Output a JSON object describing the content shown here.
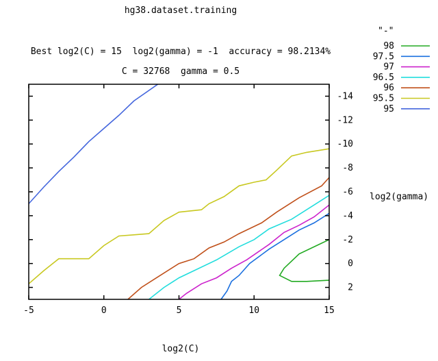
{
  "chart_data": {
    "type": "line",
    "title": "hg38.dataset.training",
    "subtitle1": "Best log2(C) = 15  log2(gamma) = -1  accuracy = 98.2134%",
    "subtitle2": "C = 32768  gamma = 0.5",
    "xlabel": "log2(C)",
    "ylabel": "log2(gamma)",
    "xlim": [
      -5,
      15
    ],
    "ylim": [
      3,
      -15
    ],
    "x_ticks": [
      "-5",
      "0",
      "5",
      "10",
      "15"
    ],
    "y_ticks": [
      "-14",
      "-12",
      "-10",
      "-8",
      "-6",
      "-4",
      "-2",
      "0",
      "2"
    ],
    "legend_title": "\"-\"",
    "grid": false,
    "legend_position": "top-right",
    "series": [
      {
        "name": "98",
        "color": "#22aa22",
        "points": [
          [
            15,
            -2.0
          ],
          [
            14.5,
            -1.7
          ],
          [
            13,
            -0.8
          ],
          [
            12,
            0.4
          ],
          [
            11.7,
            1.0
          ],
          [
            12.5,
            1.5
          ],
          [
            13.5,
            1.5
          ],
          [
            15,
            1.4
          ]
        ]
      },
      {
        "name": "97.5",
        "color": "#1a6fdf",
        "points": [
          [
            7.8,
            3.0
          ],
          [
            8.2,
            2.3
          ],
          [
            8.5,
            1.5
          ],
          [
            9,
            1.0
          ],
          [
            9.7,
            0.0
          ],
          [
            11,
            -1.2
          ],
          [
            12,
            -2.0
          ],
          [
            13,
            -2.8
          ],
          [
            14,
            -3.4
          ],
          [
            15,
            -4.2
          ]
        ]
      },
      {
        "name": "97",
        "color": "#cc22cc",
        "points": [
          [
            5,
            3.0
          ],
          [
            5.5,
            2.5
          ],
          [
            6.5,
            1.7
          ],
          [
            7.5,
            1.2
          ],
          [
            8.5,
            0.4
          ],
          [
            9.5,
            -0.3
          ],
          [
            11,
            -1.6
          ],
          [
            12,
            -2.6
          ],
          [
            13,
            -3.2
          ],
          [
            14,
            -3.9
          ],
          [
            15,
            -4.9
          ]
        ]
      },
      {
        "name": "96.5",
        "color": "#22dddd",
        "points": [
          [
            3,
            3.0
          ],
          [
            4,
            2.0
          ],
          [
            5,
            1.2
          ],
          [
            6,
            0.6
          ],
          [
            7.5,
            -0.3
          ],
          [
            9,
            -1.4
          ],
          [
            10,
            -2.0
          ],
          [
            11,
            -2.9
          ],
          [
            12.5,
            -3.7
          ],
          [
            14,
            -4.9
          ],
          [
            15,
            -5.7
          ]
        ]
      },
      {
        "name": "96",
        "color": "#c0501a",
        "points": [
          [
            1.6,
            3.0
          ],
          [
            2.5,
            2.0
          ],
          [
            3.5,
            1.2
          ],
          [
            5,
            0.0
          ],
          [
            6,
            -0.4
          ],
          [
            7,
            -1.3
          ],
          [
            8,
            -1.8
          ],
          [
            9,
            -2.5
          ],
          [
            10.5,
            -3.4
          ],
          [
            11.5,
            -4.3
          ],
          [
            13,
            -5.5
          ],
          [
            14.5,
            -6.5
          ],
          [
            15,
            -7.2
          ]
        ]
      },
      {
        "name": "95.5",
        "color": "#c8c820",
        "points": [
          [
            -5,
            1.7
          ],
          [
            -4,
            0.6
          ],
          [
            -3,
            -0.4
          ],
          [
            -1,
            -0.4
          ],
          [
            0,
            -1.5
          ],
          [
            1,
            -2.3
          ],
          [
            2,
            -2.4
          ],
          [
            3,
            -2.5
          ],
          [
            4,
            -3.6
          ],
          [
            5,
            -4.3
          ],
          [
            6.5,
            -4.5
          ],
          [
            7,
            -5.0
          ],
          [
            8,
            -5.6
          ],
          [
            9,
            -6.5
          ],
          [
            10,
            -6.8
          ],
          [
            10.8,
            -7.0
          ],
          [
            11.5,
            -7.8
          ],
          [
            12.5,
            -9.0
          ],
          [
            13.5,
            -9.3
          ],
          [
            15,
            -9.6
          ]
        ]
      },
      {
        "name": "95",
        "color": "#4466dd",
        "points": [
          [
            -5,
            -5.0
          ],
          [
            -4,
            -6.4
          ],
          [
            -3,
            -7.7
          ],
          [
            -2,
            -8.9
          ],
          [
            -1,
            -10.2
          ],
          [
            0,
            -11.3
          ],
          [
            1,
            -12.4
          ],
          [
            2,
            -13.6
          ],
          [
            3.7,
            -15.1
          ]
        ]
      }
    ]
  }
}
